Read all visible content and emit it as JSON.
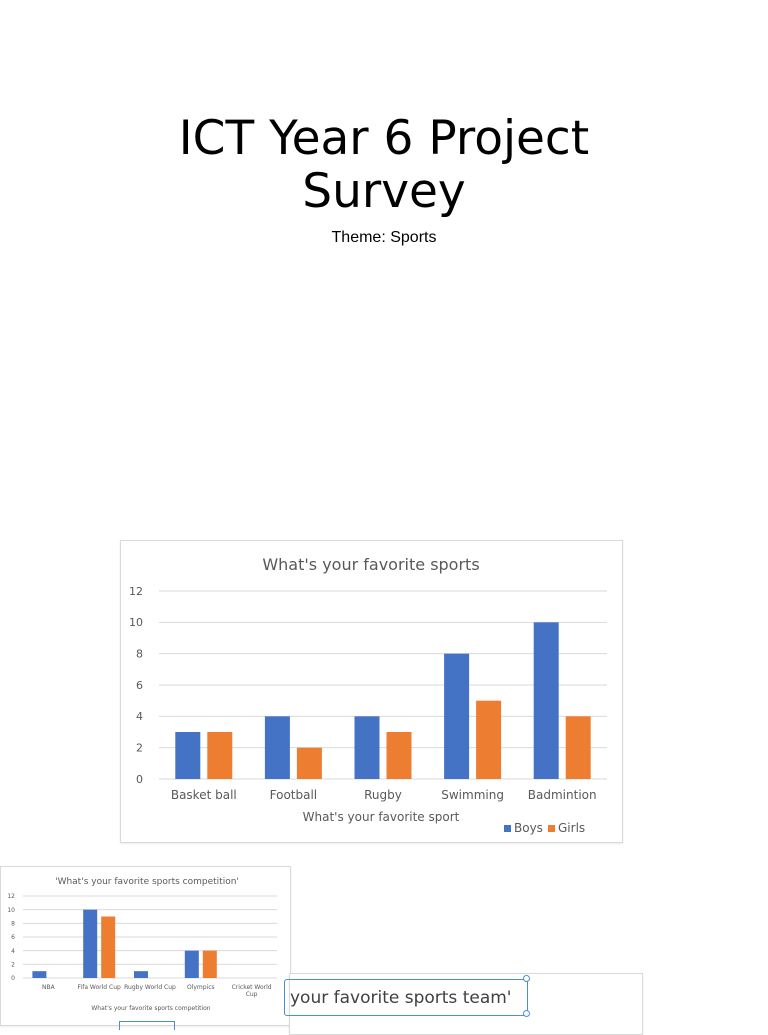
{
  "slide": {
    "title_line1": "ICT Year 6 Project",
    "title_line2": "Survey",
    "subtitle": "Theme: Sports"
  },
  "colors": {
    "boys": "#4472c4",
    "girls": "#ed7d31",
    "grid": "#d9d9d9",
    "text": "#595959"
  },
  "chart_data": [
    {
      "type": "bar",
      "title": "What's your favorite sports",
      "xlabel": "What's your favorite sport",
      "ylabel": "",
      "categories": [
        "Basket ball",
        "Football",
        "Rugby",
        "Swimming",
        "Badmintion"
      ],
      "series": [
        {
          "name": "Boys",
          "values": [
            3,
            4,
            4,
            8,
            10
          ]
        },
        {
          "name": "Girls",
          "values": [
            3,
            2,
            3,
            5,
            4
          ]
        }
      ],
      "ylim": [
        0,
        12
      ],
      "yticks": [
        0,
        2,
        4,
        6,
        8,
        10,
        12
      ],
      "grid": true,
      "legend": "bottom-right"
    },
    {
      "type": "bar",
      "title": "'What's your favorite sports competition'",
      "xlabel": "What's your favorite sports competition",
      "ylabel": "",
      "categories": [
        "NBA",
        "Fifa World Cup",
        "Rugby World Cup",
        "Olympics",
        "Cricket World Cup"
      ],
      "series": [
        {
          "name": "Boys",
          "values": [
            1,
            10,
            1,
            4,
            0
          ]
        },
        {
          "name": "Girls",
          "values": [
            0,
            9,
            0,
            4,
            0
          ]
        }
      ],
      "ylim": [
        0,
        12
      ],
      "yticks": [
        0,
        2,
        4,
        6,
        8,
        10,
        12
      ],
      "grid": true,
      "legend": "none"
    }
  ],
  "chart3": {
    "title_visible": "your favorite sports team'"
  }
}
